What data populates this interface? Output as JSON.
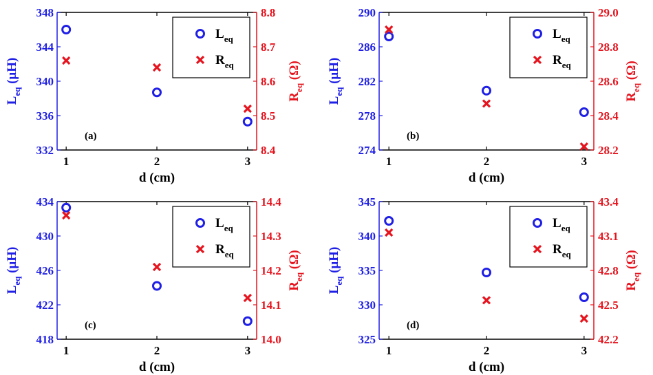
{
  "colors": {
    "left": "#1f1fe6",
    "right": "#e6141e",
    "axis": "#000000"
  },
  "chart_data": [
    {
      "type": "scatter",
      "panel_label": "(a)",
      "xlabel": "d (cm)",
      "ylabel_left": {
        "main": "L",
        "sub": "eq",
        "unit": " (μH)"
      },
      "ylabel_right": {
        "main": "R",
        "sub": "eq",
        "unit": " (Ω)"
      },
      "x": [
        1,
        2,
        3
      ],
      "xlim": [
        0.9,
        3.1
      ],
      "xticks": [
        "1",
        "2",
        "3"
      ],
      "ylim_left": [
        332,
        348
      ],
      "yticks_left": [
        "332",
        "336",
        "340",
        "344",
        "348"
      ],
      "ylim_right": [
        8.4,
        8.8
      ],
      "yticks_right": [
        "8.4",
        "8.5",
        "8.6",
        "8.7",
        "8.8"
      ],
      "series": [
        {
          "name": "Leq",
          "axis": "left",
          "marker": "circle",
          "values": [
            346.0,
            338.7,
            335.3
          ]
        },
        {
          "name": "Req",
          "axis": "right",
          "marker": "x",
          "values": [
            8.66,
            8.64,
            8.52
          ]
        }
      ],
      "legend": {
        "position": "top-right",
        "entries": [
          {
            "main": "L",
            "sub": "eq"
          },
          {
            "main": "R",
            "sub": "eq"
          }
        ]
      }
    },
    {
      "type": "scatter",
      "panel_label": "(b)",
      "xlabel": "d (cm)",
      "ylabel_left": {
        "main": "L",
        "sub": "eq",
        "unit": " (μH)"
      },
      "ylabel_right": {
        "main": "R",
        "sub": "eq",
        "unit": " (Ω)"
      },
      "x": [
        1,
        2,
        3
      ],
      "xlim": [
        0.9,
        3.1
      ],
      "xticks": [
        "1",
        "2",
        "3"
      ],
      "ylim_left": [
        274,
        290
      ],
      "yticks_left": [
        "274",
        "278",
        "282",
        "286",
        "290"
      ],
      "ylim_right": [
        28.2,
        29.0
      ],
      "yticks_right": [
        "28.2",
        "28.4",
        "28.6",
        "28.8",
        "29.0"
      ],
      "series": [
        {
          "name": "Leq",
          "axis": "left",
          "marker": "circle",
          "values": [
            287.2,
            280.9,
            278.4
          ]
        },
        {
          "name": "Req",
          "axis": "right",
          "marker": "x",
          "values": [
            28.9,
            28.47,
            28.22
          ]
        }
      ],
      "legend": {
        "position": "top-right",
        "entries": [
          {
            "main": "L",
            "sub": "eq"
          },
          {
            "main": "R",
            "sub": "eq"
          }
        ]
      }
    },
    {
      "type": "scatter",
      "panel_label": "(c)",
      "xlabel": "d (cm)",
      "ylabel_left": {
        "main": "L",
        "sub": "eq",
        "unit": " (μH)"
      },
      "ylabel_right": {
        "main": "R",
        "sub": "eq",
        "unit": " (Ω)"
      },
      "x": [
        1,
        2,
        3
      ],
      "xlim": [
        0.9,
        3.1
      ],
      "xticks": [
        "1",
        "2",
        "3"
      ],
      "ylim_left": [
        418,
        434
      ],
      "yticks_left": [
        "418",
        "422",
        "426",
        "430",
        "434"
      ],
      "ylim_right": [
        14.0,
        14.4
      ],
      "yticks_right": [
        "14.0",
        "14.1",
        "14.2",
        "14.3",
        "14.4"
      ],
      "series": [
        {
          "name": "Leq",
          "axis": "left",
          "marker": "circle",
          "values": [
            433.3,
            424.2,
            420.1
          ]
        },
        {
          "name": "Req",
          "axis": "right",
          "marker": "x",
          "values": [
            14.36,
            14.21,
            14.12
          ]
        }
      ],
      "legend": {
        "position": "top-right",
        "entries": [
          {
            "main": "L",
            "sub": "eq"
          },
          {
            "main": "R",
            "sub": "eq"
          }
        ]
      }
    },
    {
      "type": "scatter",
      "panel_label": "(d)",
      "xlabel": "d (cm)",
      "ylabel_left": {
        "main": "L",
        "sub": "eq",
        "unit": " (μH)"
      },
      "ylabel_right": {
        "main": "R",
        "sub": "eq",
        "unit": " (Ω)"
      },
      "x": [
        1,
        2,
        3
      ],
      "xlim": [
        0.9,
        3.1
      ],
      "xticks": [
        "1",
        "2",
        "3"
      ],
      "ylim_left": [
        325,
        345
      ],
      "yticks_left": [
        "325",
        "330",
        "335",
        "340",
        "345"
      ],
      "ylim_right": [
        42.2,
        43.4
      ],
      "yticks_right": [
        "42.2",
        "42.5",
        "42.8",
        "43.1",
        "43.4"
      ],
      "series": [
        {
          "name": "Leq",
          "axis": "left",
          "marker": "circle",
          "values": [
            342.2,
            334.7,
            331.1
          ]
        },
        {
          "name": "Req",
          "axis": "right",
          "marker": "x",
          "values": [
            43.13,
            42.54,
            42.38
          ]
        }
      ],
      "legend": {
        "position": "top-right",
        "entries": [
          {
            "main": "L",
            "sub": "eq"
          },
          {
            "main": "R",
            "sub": "eq"
          }
        ]
      }
    }
  ]
}
